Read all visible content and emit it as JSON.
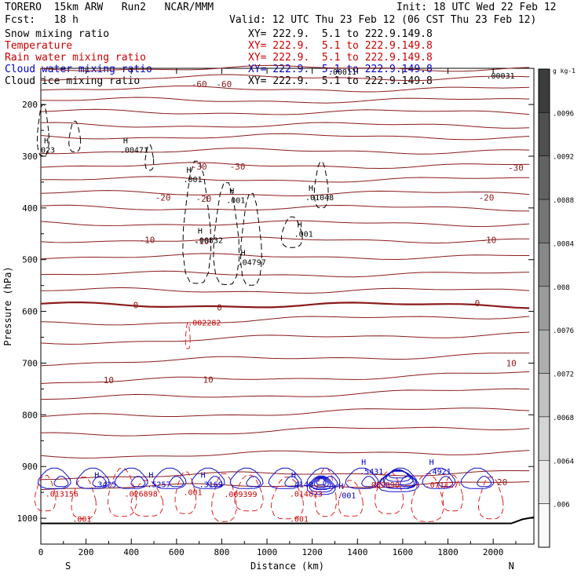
{
  "header": {
    "title_left": "TORERO  15km ARW   Run2   NCAR/MMM",
    "init": "Init: 18 UTC Wed 22 Feb 12",
    "fcst": "Fcst:   18 h",
    "valid": "Valid: 12 UTC Thu 23 Feb 12 (06 CST Thu 23 Feb 12)"
  },
  "fields": [
    {
      "name": "Snow mixing ratio",
      "xy": "XY= 222.9.  5.1 to 222.9.149.8",
      "color": "#000000"
    },
    {
      "name": "Temperature",
      "xy": "XY= 222.9.  5.1 to 222.9.149.8",
      "color": "#cc0000"
    },
    {
      "name": "Rain water mixing ratio",
      "xy": "XY= 222.9.  5.1 to 222.9.149.8",
      "color": "#cc0000"
    },
    {
      "name": "Cloud water mixing ratio",
      "xy": "XY= 222.9.  5.1 to 222.9.149.8",
      "color": "#0000cc"
    },
    {
      "name": "Cloud ice mixing ratio",
      "xy": "XY= 222.9.  5.1 to 222.9.149.8",
      "color": "#000000"
    }
  ],
  "chart_data": {
    "type": "contour",
    "xlabel": "Distance (km)",
    "ylabel": "Pressure (hPa)",
    "xlim": [
      0,
      2180
    ],
    "ylim": [
      1050,
      130
    ],
    "x_ticks": [
      0,
      200,
      400,
      600,
      800,
      1000,
      1200,
      1400,
      1600,
      1800,
      2000
    ],
    "y_ticks": [
      200,
      300,
      400,
      500,
      600,
      700,
      800,
      900,
      1000
    ],
    "left_end": "S",
    "right_end": "N",
    "colorbar": {
      "unit": "g kg-1",
      "ticks": [
        ".006",
        ".0064",
        ".0068",
        ".0072",
        ".0076",
        ".008",
        ".0084",
        ".0088",
        ".0092",
        ".0096"
      ]
    },
    "temperature_labels": [
      {
        "text": "-60",
        "x": 700,
        "p": 160
      },
      {
        "text": "-60",
        "x": 810,
        "p": 160
      },
      {
        "text": "-30",
        "x": 700,
        "p": 320
      },
      {
        "text": "-30",
        "x": 870,
        "p": 320
      },
      {
        "text": "-30",
        "x": 2100,
        "p": 322
      },
      {
        "text": "-20",
        "x": 540,
        "p": 380
      },
      {
        "text": "-20",
        "x": 720,
        "p": 382
      },
      {
        "text": "-20",
        "x": 1970,
        "p": 380
      },
      {
        "text": "-10",
        "x": 470,
        "p": 462
      },
      {
        "text": "-10",
        "x": 710,
        "p": 464
      },
      {
        "text": "-10",
        "x": 1980,
        "p": 462
      },
      {
        "text": "0",
        "x": 420,
        "p": 588
      },
      {
        "text": "0",
        "x": 790,
        "p": 592
      },
      {
        "text": "0",
        "x": 1930,
        "p": 584
      },
      {
        "text": "10",
        "x": 300,
        "p": 733
      },
      {
        "text": "10",
        "x": 740,
        "p": 732
      },
      {
        "text": "10",
        "x": 2080,
        "p": 700
      },
      {
        "text": "20",
        "x": 2040,
        "p": 930
      }
    ],
    "snow_labels": [
      {
        "text": ".00471",
        "x": 350,
        "p": 293
      },
      {
        "text": ".001",
        "x": 630,
        "p": 350
      },
      {
        "text": ".001",
        "x": 820,
        "p": 390
      },
      {
        "text": ".06832",
        "x": 680,
        "p": 468
      },
      {
        "text": ".04797",
        "x": 870,
        "p": 510
      },
      {
        "text": ".01048",
        "x": 1170,
        "p": 385
      },
      {
        "text": ".001",
        "x": 1120,
        "p": 456
      },
      {
        "text": "023",
        "x": 0,
        "p": 293
      }
    ],
    "rain_labels": [
      {
        "text": ".002282",
        "x": 650,
        "p": 627
      },
      {
        "text": ".013156",
        "x": 20,
        "p": 958
      },
      {
        "text": ".026898",
        "x": 370,
        "p": 958
      },
      {
        "text": ".001",
        "x": 630,
        "p": 955
      },
      {
        "text": ".009399",
        "x": 810,
        "p": 959
      },
      {
        "text": ".014823",
        "x": 1100,
        "p": 958
      },
      {
        "text": ".089990",
        "x": 1440,
        "p": 941
      },
      {
        "text": ".071127",
        "x": 1700,
        "p": 941
      },
      {
        "text": ".001",
        "x": 140,
        "p": 1007
      },
      {
        "text": ".001",
        "x": 1100,
        "p": 1007
      }
    ],
    "cloud_water_labels": [
      {
        "text": ".3425",
        "x": 230,
        "p": 940
      },
      {
        "text": ".5257",
        "x": 470,
        "p": 940
      },
      {
        "text": ".3169",
        "x": 700,
        "p": 940
      },
      {
        "text": ".4149",
        "x": 1100,
        "p": 940
      },
      {
        "text": ".001",
        "x": 1310,
        "p": 961
      },
      {
        "text": ".5431",
        "x": 1410,
        "p": 915
      },
      {
        "text": ".4921",
        "x": 1710,
        "p": 915
      }
    ],
    "ice_labels": [
      {
        "text": ".00031",
        "x": 1970,
        "p": 150
      },
      {
        "text": ".00011",
        "x": 1270,
        "p": 142
      }
    ]
  }
}
